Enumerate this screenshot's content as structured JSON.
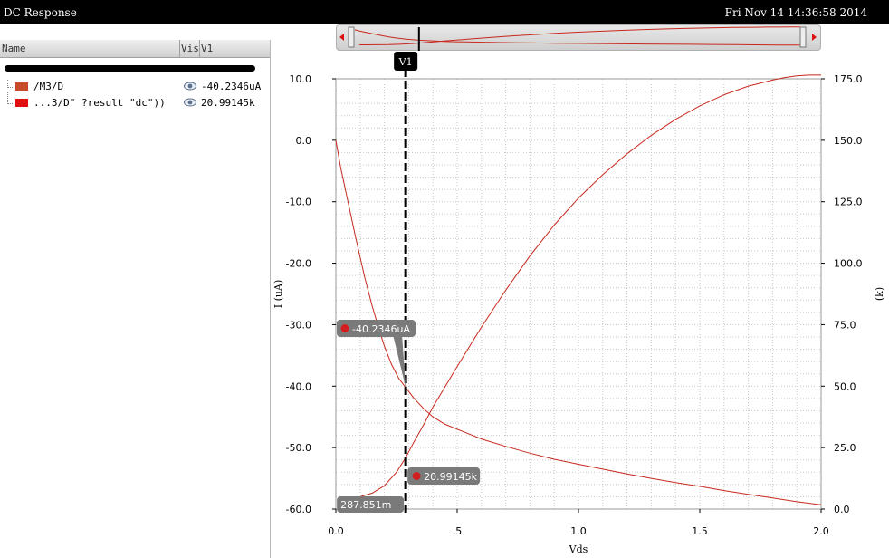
{
  "window": {
    "title": "DC Response",
    "datetime": "Fri Nov 14 14:36:58 2014"
  },
  "trace_panel": {
    "columns": [
      "Name",
      "Vis",
      "V1"
    ],
    "traces": [
      {
        "name": "/M3/D",
        "value": "-40.2346uA",
        "color": "#c84a2a"
      },
      {
        "name": "...3/D\" ?result \"dc\"))",
        "value": "20.99145k",
        "color": "#e01010"
      }
    ]
  },
  "colors": {
    "trace": "#c8281e",
    "grid": "#c8c8c8",
    "marker": "#000000",
    "callout_bg": "#7a7a7a",
    "callout_dot": "#d21e1e"
  },
  "chart_data": {
    "type": "line",
    "xlabel": "Vds",
    "ylabel": "I (uA)",
    "y2label": "(k)",
    "xlim": [
      0.0,
      2.0
    ],
    "ylim": [
      -60.0,
      10.0
    ],
    "y2lim": [
      0.0,
      175.0
    ],
    "x_ticks": [
      "0.0",
      ".5",
      "1.0",
      "1.5",
      "2.0"
    ],
    "y_ticks": [
      "10.0",
      "0.0",
      "-10.0",
      "-20.0",
      "-30.0",
      "-40.0",
      "-50.0",
      "-60.0"
    ],
    "y2_ticks": [
      "175.0",
      "150.0",
      "125.0",
      "100.0",
      "75.0",
      "50.0",
      "25.0",
      "0.0"
    ],
    "grid": true,
    "series": [
      {
        "name": "/M3/D",
        "axis": "left",
        "x": [
          0.0,
          0.02,
          0.05,
          0.08,
          0.1,
          0.12,
          0.15,
          0.18,
          0.2,
          0.23,
          0.26,
          0.2879,
          0.32,
          0.36,
          0.4,
          0.45,
          0.5,
          0.6,
          0.7,
          0.8,
          0.9,
          1.0,
          1.1,
          1.2,
          1.3,
          1.4,
          1.5,
          1.6,
          1.7,
          1.8,
          1.9,
          2.0
        ],
        "values": [
          0.0,
          -4.5,
          -10.0,
          -15.5,
          -19.0,
          -22.5,
          -27.0,
          -31.0,
          -33.5,
          -36.5,
          -38.8,
          -40.23,
          -41.9,
          -43.6,
          -45.0,
          -46.2,
          -47.0,
          -48.6,
          -49.8,
          -50.9,
          -51.9,
          -52.7,
          -53.5,
          -54.3,
          -55.0,
          -55.7,
          -56.3,
          -57.0,
          -57.6,
          -58.2,
          -58.8,
          -59.3
        ]
      },
      {
        "name": "...3/D\" ?result \"dc\"))",
        "axis": "right",
        "x": [
          0.02,
          0.05,
          0.1,
          0.15,
          0.2,
          0.25,
          0.2879,
          0.32,
          0.36,
          0.4,
          0.5,
          0.6,
          0.7,
          0.8,
          0.9,
          1.0,
          1.1,
          1.2,
          1.3,
          1.4,
          1.5,
          1.6,
          1.7,
          1.8,
          1.85,
          1.9,
          1.95,
          2.0
        ],
        "values": [
          4.0,
          4.2,
          5.0,
          6.5,
          9.5,
          15.0,
          20.99,
          27.0,
          34.0,
          41.5,
          58.0,
          74.0,
          89.0,
          103.0,
          115.5,
          126.5,
          136.0,
          144.5,
          152.0,
          158.5,
          164.0,
          168.5,
          172.0,
          174.5,
          175.5,
          176.2,
          176.5,
          176.5
        ]
      }
    ],
    "cursor": {
      "label": "V1",
      "x": 0.287851,
      "x_readout": "287.851m"
    },
    "annotations": [
      {
        "text": "-40.2346uA",
        "x": 0.287851,
        "value": -40.2346,
        "axis": "left"
      },
      {
        "text": "20.99145k",
        "x": 0.287851,
        "value": 20.99145,
        "axis": "right"
      }
    ]
  }
}
